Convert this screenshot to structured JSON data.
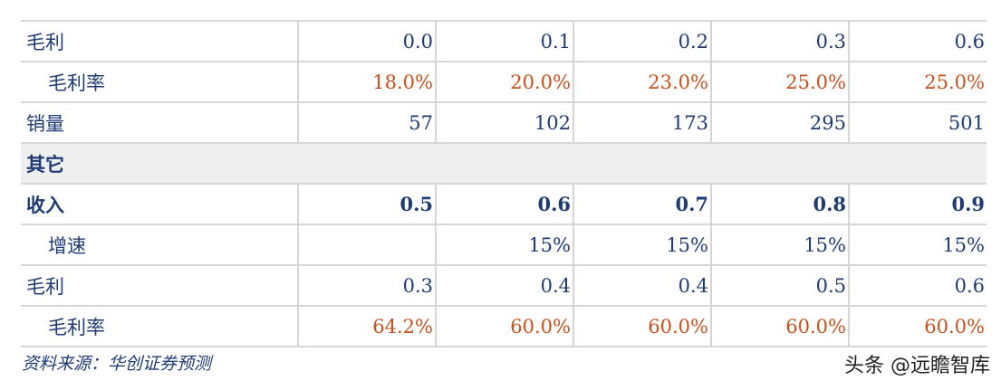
{
  "table": {
    "rows": [
      {
        "label": "毛利",
        "values": [
          "0.0",
          "0.1",
          "0.2",
          "0.3",
          "0.6"
        ]
      },
      {
        "label": "毛利率",
        "values": [
          "18.0%",
          "20.0%",
          "23.0%",
          "25.0%",
          "25.0%"
        ]
      },
      {
        "label": "销量",
        "values": [
          "57",
          "102",
          "173",
          "295",
          "501"
        ]
      },
      {
        "label": "其它"
      },
      {
        "label": "收入",
        "values": [
          "0.5",
          "0.6",
          "0.7",
          "0.8",
          "0.9"
        ]
      },
      {
        "label": "增速",
        "values": [
          "",
          "15%",
          "15%",
          "15%",
          "15%"
        ]
      },
      {
        "label": "毛利",
        "values": [
          "0.3",
          "0.4",
          "0.4",
          "0.5",
          "0.6"
        ]
      },
      {
        "label": "毛利率",
        "values": [
          "64.2%",
          "60.0%",
          "60.0%",
          "60.0%",
          "60.0%"
        ]
      }
    ]
  },
  "footer": {
    "source": "资料来源：华创证券预测",
    "brand": "头条 @远瞻智库"
  },
  "colors": {
    "text_blue": "#1f3b73",
    "percent_red": "#c8501e",
    "section_bg": "#efefef",
    "border": "#d6d6d6"
  }
}
